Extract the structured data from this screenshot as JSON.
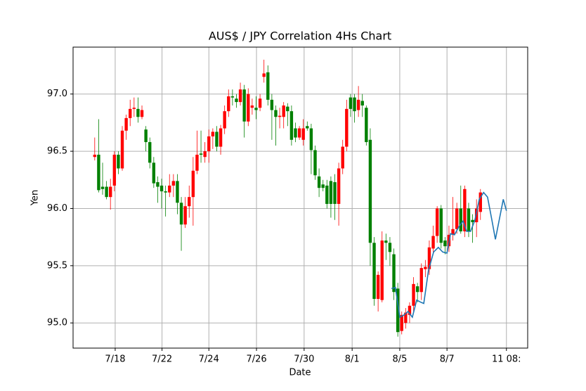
{
  "chart_data": {
    "type": "candlestick",
    "title": "AUS$ / JPY   Correlation 4Hs Chart",
    "xlabel": "Date",
    "ylabel": "Yen",
    "ylim": [
      94.78,
      97.41
    ],
    "yticks": [
      {
        "value": 95,
        "label": "95.0"
      },
      {
        "value": 95.5,
        "label": "95.5"
      },
      {
        "value": 96,
        "label": "96.0"
      },
      {
        "value": 96.5,
        "label": "96.5"
      },
      {
        "value": 97,
        "label": "97.0"
      }
    ],
    "xlim": [
      -5.5,
      110
    ],
    "xticks": [
      {
        "value": 5.2,
        "label": "7/18"
      },
      {
        "value": 17.1,
        "label": "7/22"
      },
      {
        "value": 29,
        "label": "7/24"
      },
      {
        "value": 41.1,
        "label": "7/26"
      },
      {
        "value": 53.2,
        "label": "7/30"
      },
      {
        "value": 65.4,
        "label": "8/1"
      },
      {
        "value": 77.5,
        "label": "8/5"
      },
      {
        "value": 89.5,
        "label": "8/7"
      },
      {
        "value": 104.6,
        "label": "11 08:"
      }
    ],
    "grid": true,
    "up_color": "#ff0000",
    "down_color": "#008000",
    "open": [
      96.45,
      96.47,
      96.19,
      96.19,
      96.1,
      96.2,
      96.47,
      96.35,
      96.68,
      96.79,
      96.87,
      96.87,
      96.8,
      96.69,
      96.58,
      96.4,
      96.23,
      96.2,
      96.15,
      96.14,
      96.2,
      96.24,
      96.05,
      95.86,
      96.02,
      96.1,
      96.33,
      96.48,
      96.45,
      96.5,
      96.63,
      96.67,
      96.54,
      96.7,
      96.85,
      96.98,
      96.96,
      96.93,
      97.04,
      96.76,
      96.88,
      96.88,
      96.88,
      97.15,
      97.19,
      96.95,
      96.86,
      96.8,
      96.8,
      96.89,
      96.85,
      96.7,
      96.62,
      96.6,
      96.72,
      96.7,
      96.51,
      96.28,
      96.21,
      96.2,
      96.24,
      96.23,
      96.04,
      96.35,
      96.54,
      96.97,
      96.97,
      96.86,
      96.94,
      96.88,
      96.6,
      95.7,
      95.21,
      95.2,
      95.72,
      95.7,
      95.6,
      95.3,
      94.93,
      95.0,
      95.07,
      95.15,
      95.32,
      95.27,
      95.47,
      95.47,
      95.65,
      95.76,
      96.0,
      95.72,
      95.67,
      95.77,
      95.82,
      96.0,
      95.8,
      96.0,
      95.9,
      95.88,
      95.97
    ],
    "high": [
      96.62,
      96.78,
      96.4,
      96.24,
      96.26,
      96.5,
      96.5,
      96.72,
      96.82,
      96.95,
      96.97,
      96.97,
      96.9,
      96.72,
      96.62,
      96.45,
      96.28,
      96.26,
      96.2,
      96.3,
      96.3,
      96.3,
      96.1,
      96.1,
      96.2,
      96.45,
      96.68,
      96.68,
      96.58,
      96.69,
      96.7,
      96.72,
      96.73,
      96.9,
      97.04,
      97.04,
      97.0,
      97.1,
      97.08,
      97.05,
      96.96,
      96.98,
      97.0,
      97.3,
      97.25,
      97.0,
      96.9,
      96.88,
      96.93,
      96.92,
      96.9,
      96.75,
      96.72,
      96.78,
      96.76,
      96.74,
      96.55,
      96.35,
      96.25,
      96.25,
      96.28,
      96.3,
      96.4,
      96.6,
      96.95,
      97.0,
      97.0,
      97.07,
      97.0,
      96.9,
      96.7,
      95.75,
      95.45,
      95.8,
      95.78,
      95.75,
      95.65,
      95.35,
      95.1,
      95.13,
      95.18,
      95.4,
      95.35,
      95.52,
      95.55,
      95.72,
      95.85,
      96.02,
      96.03,
      95.75,
      95.85,
      96.1,
      96.05,
      96.2,
      96.2,
      96.05,
      95.95,
      96.08,
      96.17
    ],
    "low": [
      96.42,
      96.14,
      96.12,
      96.08,
      95.99,
      96.15,
      96.3,
      96.33,
      96.6,
      96.72,
      96.8,
      96.75,
      96.78,
      96.5,
      96.35,
      96.18,
      96.05,
      96.0,
      95.93,
      96.1,
      96.1,
      95.95,
      95.63,
      95.83,
      95.92,
      95.85,
      96.3,
      96.4,
      96.4,
      96.4,
      96.52,
      96.5,
      96.47,
      96.65,
      96.8,
      96.9,
      96.88,
      96.9,
      96.62,
      96.72,
      96.82,
      96.78,
      96.85,
      97.1,
      96.9,
      96.6,
      96.55,
      96.7,
      96.7,
      96.72,
      96.55,
      96.58,
      96.6,
      96.55,
      96.68,
      96.3,
      96.25,
      96.1,
      96.15,
      96.0,
      95.92,
      95.9,
      95.85,
      96.3,
      96.5,
      96.8,
      96.75,
      96.8,
      96.8,
      96.55,
      95.5,
      95.15,
      95.1,
      95.18,
      95.55,
      95.5,
      95.2,
      94.88,
      94.9,
      94.95,
      95.0,
      95.1,
      95.18,
      95.2,
      95.4,
      95.42,
      95.6,
      95.7,
      95.65,
      95.6,
      95.62,
      95.72,
      95.78,
      95.78,
      95.75,
      95.75,
      95.7,
      95.75,
      95.9
    ],
    "close": [
      96.47,
      96.16,
      96.17,
      96.1,
      96.19,
      96.47,
      96.35,
      96.68,
      96.79,
      96.87,
      96.88,
      96.8,
      96.86,
      96.58,
      96.4,
      96.22,
      96.19,
      96.15,
      96.14,
      96.2,
      96.24,
      96.05,
      95.86,
      96.02,
      96.1,
      96.33,
      96.47,
      96.47,
      96.5,
      96.63,
      96.67,
      96.54,
      96.7,
      96.85,
      96.98,
      96.97,
      96.93,
      97.04,
      96.76,
      97.0,
      96.9,
      96.86,
      96.96,
      97.18,
      96.95,
      96.86,
      96.8,
      96.81,
      96.9,
      96.85,
      96.6,
      96.62,
      96.7,
      96.7,
      96.7,
      96.51,
      96.29,
      96.18,
      96.18,
      96.04,
      96.04,
      96.04,
      96.35,
      96.54,
      96.87,
      96.87,
      96.85,
      96.95,
      96.9,
      96.58,
      95.7,
      95.21,
      95.42,
      95.72,
      95.7,
      95.62,
      95.27,
      94.92,
      95.07,
      95.09,
      95.15,
      95.34,
      95.27,
      95.48,
      95.49,
      95.66,
      95.76,
      96.0,
      95.7,
      95.67,
      95.77,
      95.82,
      96.0,
      95.8,
      96.17,
      95.8,
      95.88,
      96.0,
      96.14
    ],
    "line": {
      "color": "#1f77b4",
      "x": [
        75.4,
        76.4,
        77.5,
        78.6,
        79.6,
        80.7,
        81.8,
        82.9,
        83.6,
        84.8,
        86.1,
        87.3,
        88.4,
        89.5,
        90.4,
        91.4,
        92.5,
        93.6,
        94.5,
        95.5,
        96.6,
        97.7,
        98.8,
        99.8,
        100.9,
        101.8,
        103.8,
        104.6
      ],
      "values": [
        95.3,
        95.31,
        95.05,
        95.07,
        95.1,
        95.05,
        95.2,
        95.18,
        95.17,
        95.46,
        95.62,
        95.66,
        95.62,
        95.61,
        95.78,
        95.77,
        95.84,
        95.89,
        95.8,
        95.8,
        95.9,
        96.08,
        96.14,
        96.1,
        95.9,
        95.73,
        96.08,
        95.98
      ]
    }
  }
}
